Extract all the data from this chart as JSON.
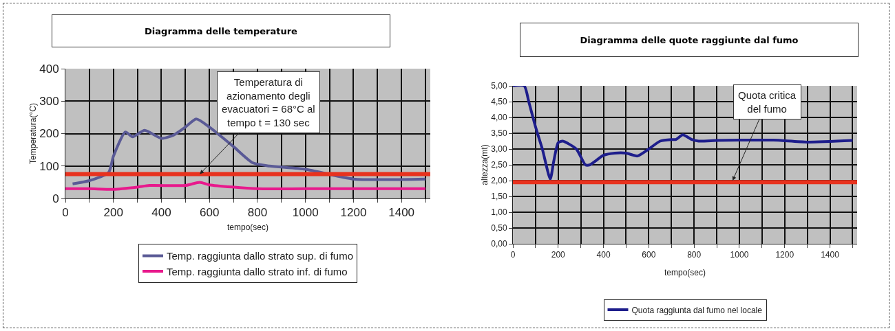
{
  "chart_data": [
    {
      "type": "line",
      "title": "Diagramma delle temperature",
      "xlabel": "tempo(sec)",
      "ylabel": "Temperatura(°C)",
      "xlim": [
        0,
        1520
      ],
      "ylim": [
        0,
        400
      ],
      "xticks": [
        0,
        {
          "value": 100,
          "label": null
        },
        200,
        {
          "value": 300,
          "label": null
        },
        400,
        {
          "value": 500,
          "label": null
        },
        600,
        {
          "value": 700,
          "label": null
        },
        800,
        {
          "value": 900,
          "label": null
        },
        1000,
        {
          "value": 1100,
          "label": null
        },
        1200,
        {
          "value": 1300,
          "label": null
        },
        1400,
        {
          "value": 1500,
          "label": null
        }
      ],
      "yticks": [
        0,
        100,
        200,
        300,
        400
      ],
      "grid": true,
      "legend": "bottom",
      "marker": "none",
      "line_style": "solid",
      "series": [
        {
          "name": "Temp. raggiunta dallo strato sup. di fumo",
          "color": "#5a5a96",
          "x": [
            30,
            100,
            180,
            200,
            250,
            280,
            330,
            400,
            450,
            500,
            545,
            600,
            700,
            780,
            850,
            1000,
            1200,
            1500
          ],
          "values": [
            45,
            55,
            80,
            130,
            205,
            190,
            210,
            185,
            195,
            220,
            245,
            220,
            160,
            110,
            100,
            90,
            60,
            60
          ]
        },
        {
          "name": "Temp. raggiunta dallo strato inf. di fumo",
          "color": "#e8198c",
          "x": [
            0,
            100,
            200,
            300,
            350,
            500,
            560,
            600,
            800,
            1000,
            1500
          ],
          "values": [
            30,
            30,
            28,
            35,
            40,
            40,
            50,
            42,
            30,
            30,
            30
          ]
        }
      ],
      "ref_lines": [
        {
          "axis": "y",
          "value": 75,
          "label": null,
          "color": "#e8321e"
        }
      ],
      "annotations": [
        {
          "text": "Temperatura di\nazionamento degli\nevacuatori = 68°C al\ntempo t = 130 sec",
          "x": 560,
          "y": 75
        }
      ]
    },
    {
      "type": "line",
      "title": "Diagramma delle quote raggiunte dal fumo",
      "xlabel": "tempo(sec)",
      "ylabel": "altezza(mt)",
      "xlim": [
        0,
        1520
      ],
      "ylim": [
        0,
        5
      ],
      "xticks": [
        0,
        {
          "value": 100,
          "label": null
        },
        200,
        {
          "value": 300,
          "label": null
        },
        400,
        {
          "value": 500,
          "label": null
        },
        600,
        {
          "value": 700,
          "label": null
        },
        800,
        {
          "value": 900,
          "label": null
        },
        1000,
        {
          "value": 1100,
          "label": null
        },
        1200,
        {
          "value": 1300,
          "label": null
        },
        1400,
        {
          "value": 1500,
          "label": null
        }
      ],
      "yticks": [
        {
          "value": 0,
          "label": "0,00"
        },
        {
          "value": 0.5,
          "label": "0,50"
        },
        {
          "value": 1,
          "label": "1,00"
        },
        {
          "value": 1.5,
          "label": "1,50"
        },
        {
          "value": 2,
          "label": "2,00"
        },
        {
          "value": 2.5,
          "label": "2,50"
        },
        {
          "value": 3,
          "label": "3,00"
        },
        {
          "value": 3.5,
          "label": "3,50"
        },
        {
          "value": 4,
          "label": "4,00"
        },
        {
          "value": 4.5,
          "label": "4,50"
        },
        {
          "value": 5,
          "label": "5,00"
        }
      ],
      "grid": true,
      "legend": "bottom",
      "marker": "none",
      "line_style": "solid",
      "series": [
        {
          "name": "Quota raggiunta dal fumo nel locale",
          "color": "#1e1e8c",
          "x": [
            0,
            50,
            70,
            100,
            130,
            165,
            180,
            200,
            220,
            280,
            320,
            340,
            400,
            450,
            500,
            550,
            600,
            650,
            700,
            720,
            750,
            790,
            820,
            900,
            1000,
            1150,
            1300,
            1500
          ],
          "values": [
            5,
            5,
            4.5,
            3.7,
            3,
            2.05,
            2.6,
            3.2,
            3.25,
            3,
            2.5,
            2.5,
            2.8,
            2.87,
            2.87,
            2.78,
            3,
            3.25,
            3.3,
            3.3,
            3.45,
            3.3,
            3.25,
            3.27,
            3.28,
            3.28,
            3.22,
            3.27
          ]
        }
      ],
      "ref_lines": [
        {
          "axis": "y",
          "value": 1.95,
          "label": null,
          "color": "#e8321e"
        }
      ],
      "annotations": [
        {
          "text": "Quota critica\ndel fumo",
          "x": 970,
          "y": 2
        }
      ]
    }
  ]
}
